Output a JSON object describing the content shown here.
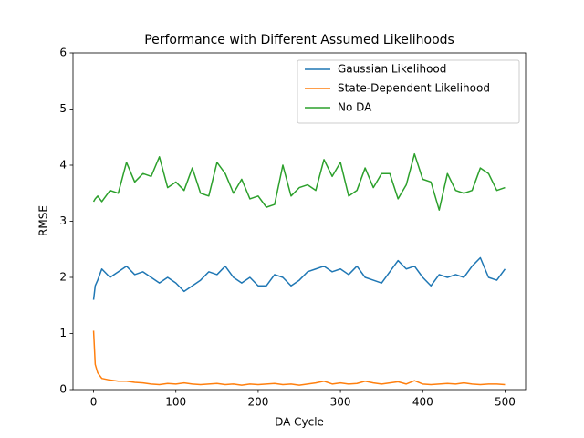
{
  "chart_data": {
    "type": "line",
    "title": "Performance with Different Assumed Likelihoods",
    "xlabel": "DA Cycle",
    "ylabel": "RMSE",
    "x": [
      0,
      2,
      5,
      10,
      20,
      30,
      40,
      50,
      60,
      70,
      80,
      90,
      100,
      110,
      120,
      130,
      140,
      150,
      160,
      170,
      180,
      190,
      200,
      210,
      220,
      230,
      240,
      250,
      260,
      270,
      280,
      290,
      300,
      310,
      320,
      330,
      340,
      350,
      360,
      370,
      380,
      390,
      400,
      410,
      420,
      430,
      440,
      450,
      460,
      470,
      480,
      490,
      500
    ],
    "series": [
      {
        "name": "Gaussian Likelihood",
        "color": "#1f77b4",
        "values": [
          1.6,
          1.85,
          1.95,
          2.15,
          2.0,
          2.1,
          2.2,
          2.05,
          2.1,
          2.0,
          1.9,
          2.0,
          1.9,
          1.75,
          1.85,
          1.95,
          2.1,
          2.05,
          2.2,
          2.0,
          1.9,
          2.0,
          1.85,
          1.85,
          2.05,
          2.0,
          1.85,
          1.95,
          2.1,
          2.15,
          2.2,
          2.1,
          2.15,
          2.05,
          2.2,
          2.0,
          1.95,
          1.9,
          2.1,
          2.3,
          2.15,
          2.2,
          2.0,
          1.85,
          2.05,
          2.0,
          2.05,
          2.0,
          2.2,
          2.35,
          2.0,
          1.95,
          2.15
        ]
      },
      {
        "name": "State-Dependent Likelihood",
        "color": "#ff7f0e",
        "values": [
          1.05,
          0.45,
          0.3,
          0.2,
          0.17,
          0.15,
          0.15,
          0.13,
          0.12,
          0.1,
          0.09,
          0.11,
          0.1,
          0.12,
          0.1,
          0.09,
          0.1,
          0.11,
          0.09,
          0.1,
          0.08,
          0.1,
          0.09,
          0.1,
          0.11,
          0.09,
          0.1,
          0.08,
          0.1,
          0.12,
          0.15,
          0.1,
          0.12,
          0.1,
          0.11,
          0.15,
          0.12,
          0.1,
          0.12,
          0.14,
          0.1,
          0.16,
          0.1,
          0.09,
          0.1,
          0.11,
          0.1,
          0.12,
          0.1,
          0.09,
          0.1,
          0.1,
          0.09
        ]
      },
      {
        "name": "No DA",
        "color": "#2ca02c",
        "values": [
          3.35,
          3.4,
          3.45,
          3.35,
          3.55,
          3.5,
          4.05,
          3.7,
          3.85,
          3.8,
          4.15,
          3.6,
          3.7,
          3.55,
          3.95,
          3.5,
          3.45,
          4.05,
          3.85,
          3.5,
          3.75,
          3.4,
          3.45,
          3.25,
          3.3,
          4.0,
          3.45,
          3.6,
          3.65,
          3.55,
          4.1,
          3.8,
          4.05,
          3.45,
          3.55,
          3.95,
          3.6,
          3.85,
          3.85,
          3.4,
          3.65,
          4.2,
          3.75,
          3.7,
          3.2,
          3.85,
          3.55,
          3.5,
          3.55,
          3.95,
          3.85,
          3.55,
          3.6
        ]
      }
    ],
    "xlim": [
      -25,
      525
    ],
    "ylim": [
      0,
      6
    ],
    "xticks": [
      0,
      100,
      200,
      300,
      400,
      500
    ],
    "yticks": [
      0,
      1,
      2,
      3,
      4,
      5,
      6
    ],
    "grid": false,
    "legend": "upper right"
  }
}
